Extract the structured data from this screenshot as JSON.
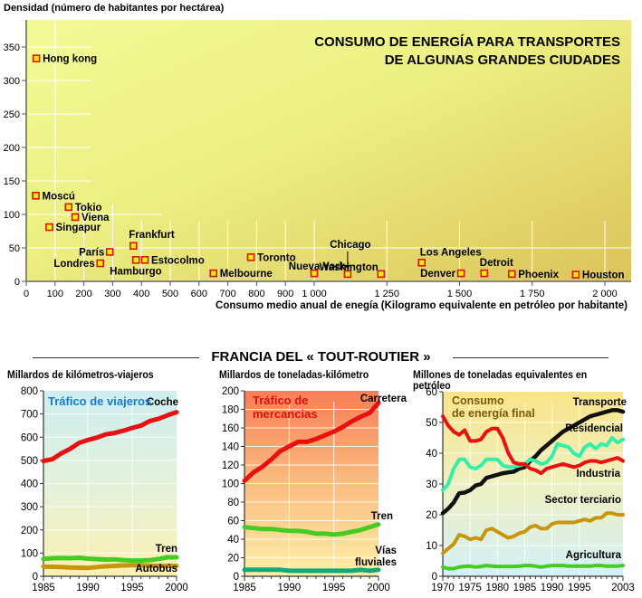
{
  "chart_data": [
    {
      "type": "scatter",
      "title": "CONSUMO DE ENERGÍA PARA TRANSPORTES DE ALGUNAS GRANDES CIUDADES",
      "title_lines": [
        "CONSUMO DE ENERGÍA PARA TRANSPORTES",
        "DE ALGUNAS GRANDES CIUDADES"
      ],
      "xlabel": "Consumo medio anual de enegía (Kilogramo equivalente en petróleo por habitante)",
      "ylabel": "Densidad (número de habitantes por hectárea)",
      "xlim": [
        0,
        2000
      ],
      "ylim": [
        0,
        380
      ],
      "x_scale_note": "piecewise: 0-1000 in steps of 100, 1000-2000 in steps of 250",
      "xticks": [
        {
          "value": 0,
          "label": "0"
        },
        {
          "value": 100,
          "label": "100"
        },
        {
          "value": 200,
          "label": "200"
        },
        {
          "value": 300,
          "label": "300"
        },
        {
          "value": 400,
          "label": "400"
        },
        {
          "value": 500,
          "label": "500"
        },
        {
          "value": 600,
          "label": "600"
        },
        {
          "value": 700,
          "label": "700"
        },
        {
          "value": 800,
          "label": "800"
        },
        {
          "value": 900,
          "label": "900"
        },
        {
          "value": 1000,
          "label": "1 000"
        },
        {
          "value": 1250,
          "label": "1 250"
        },
        {
          "value": 1500,
          "label": "1 500"
        },
        {
          "value": 1750,
          "label": "1 750"
        },
        {
          "value": 2000,
          "label": "2 000"
        }
      ],
      "yticks": [
        0,
        50,
        100,
        150,
        200,
        250,
        300,
        350
      ],
      "grid": true,
      "points": [
        {
          "city": "Hong kong",
          "x": 35,
          "y": 333,
          "label_pos": "right"
        },
        {
          "city": "Moscú",
          "x": 33,
          "y": 128,
          "label_pos": "right"
        },
        {
          "city": "Tokio",
          "x": 147,
          "y": 111,
          "label_pos": "right"
        },
        {
          "city": "Viena",
          "x": 170,
          "y": 96,
          "label_pos": "right"
        },
        {
          "city": "Singapur",
          "x": 80,
          "y": 81,
          "label_pos": "right"
        },
        {
          "city": "París",
          "x": 290,
          "y": 44,
          "label_pos": "left"
        },
        {
          "city": "Londres",
          "x": 257,
          "y": 27,
          "label_pos": "left"
        },
        {
          "city": "Frankfurt",
          "x": 372,
          "y": 53,
          "label_pos": "above"
        },
        {
          "city": "Hamburgo",
          "x": 381,
          "y": 32,
          "label_pos": "below-left"
        },
        {
          "city": "Estocolmo",
          "x": 412,
          "y": 32,
          "label_pos": "right"
        },
        {
          "city": "Melbourne",
          "x": 650,
          "y": 12,
          "label_pos": "right"
        },
        {
          "city": "Toronto",
          "x": 780,
          "y": 36,
          "label_pos": "right"
        },
        {
          "city": "Nueva York",
          "x": 1000,
          "y": 12,
          "label_pos": "above-left"
        },
        {
          "city": "Chicago",
          "x": 1115,
          "y": 11,
          "label_pos": "above-arrow"
        },
        {
          "city": "Washington",
          "x": 1230,
          "y": 11,
          "label_pos": "above-left"
        },
        {
          "city": "Los Angeles",
          "x": 1370,
          "y": 28,
          "label_pos": "above-right"
        },
        {
          "city": "Denver",
          "x": 1505,
          "y": 12,
          "label_pos": "left"
        },
        {
          "city": "Detroit",
          "x": 1585,
          "y": 12,
          "label_pos": "above-right"
        },
        {
          "city": "Phoenix",
          "x": 1680,
          "y": 11,
          "label_pos": "right"
        },
        {
          "city": "Houston",
          "x": 1900,
          "y": 10,
          "label_pos": "right"
        }
      ]
    },
    {
      "type": "line",
      "title": "Tráfico de viajeros",
      "ylabel": "Millardos de kilómetros-viajeros",
      "x": [
        1985,
        1986,
        1987,
        1988,
        1989,
        1990,
        1991,
        1992,
        1993,
        1994,
        1995,
        1996,
        1997,
        1998,
        1999,
        2000
      ],
      "xticks": [
        1985,
        1990,
        1995,
        2000
      ],
      "ylim": [
        0,
        800
      ],
      "yticks": [
        0,
        100,
        200,
        300,
        400,
        500,
        600,
        700,
        800
      ],
      "series": [
        {
          "name": "Coche",
          "color": "#e81010",
          "values": [
            497,
            505,
            530,
            550,
            575,
            588,
            598,
            612,
            618,
            628,
            640,
            650,
            670,
            680,
            695,
            708
          ]
        },
        {
          "name": "Tren",
          "color": "#44cc22",
          "values": [
            75,
            78,
            79,
            78,
            80,
            76,
            74,
            72,
            73,
            70,
            68,
            68,
            70,
            75,
            82,
            82
          ]
        },
        {
          "name": "Autobús",
          "color": "#c8960c",
          "values": [
            42,
            41,
            40,
            38,
            37,
            36,
            40,
            43,
            45,
            47,
            48,
            48,
            46,
            45,
            45,
            45
          ]
        }
      ]
    },
    {
      "type": "line",
      "title": "Tráfico de mercancias",
      "title_lines": [
        "Tráfico de",
        "mercancias"
      ],
      "ylabel": "Millardos de toneladas-kilómetro",
      "x": [
        1985,
        1986,
        1987,
        1988,
        1989,
        1990,
        1991,
        1992,
        1993,
        1994,
        1995,
        1996,
        1997,
        1998,
        1999,
        2000
      ],
      "xticks": [
        1985,
        1990,
        1995,
        2000
      ],
      "ylim": [
        0,
        200
      ],
      "yticks": [
        0,
        20,
        40,
        60,
        80,
        100,
        120,
        140,
        160,
        180,
        200
      ],
      "series": [
        {
          "name": "Carretera",
          "color": "#e81010",
          "values": [
            103,
            112,
            118,
            126,
            135,
            140,
            145,
            145,
            148,
            152,
            156,
            161,
            167,
            172,
            176,
            187
          ]
        },
        {
          "name": "Tren",
          "color": "#44cc22",
          "values": [
            53,
            52,
            51,
            51,
            50,
            49,
            49,
            48,
            46,
            46,
            45,
            46,
            48,
            50,
            53,
            56
          ]
        },
        {
          "name": "Vías fluviales",
          "label_lines": [
            "Vías",
            "fluviales"
          ],
          "color": "#11aa77",
          "values": [
            7,
            7,
            7,
            7,
            7,
            6,
            6,
            6,
            6,
            6,
            6,
            6,
            6,
            7,
            6,
            7
          ]
        }
      ]
    },
    {
      "type": "line",
      "title": "Consumo de energía final",
      "title_lines": [
        "Consumo",
        "de energía final"
      ],
      "ylabel": "Millones de toneladas equivalentes en petróleo",
      "x": [
        1970,
        1971,
        1972,
        1973,
        1974,
        1975,
        1976,
        1977,
        1978,
        1979,
        1980,
        1981,
        1982,
        1983,
        1984,
        1985,
        1986,
        1987,
        1988,
        1989,
        1990,
        1991,
        1992,
        1993,
        1994,
        1995,
        1996,
        1997,
        1998,
        1999,
        2000,
        2001,
        2002,
        2003
      ],
      "xticks": [
        1970,
        1975,
        1980,
        1985,
        1990,
        1995,
        2003
      ],
      "ylim": [
        0,
        60
      ],
      "yticks": [
        0,
        10,
        20,
        30,
        40,
        50,
        60
      ],
      "series": [
        {
          "name": "Transporte",
          "color": "#111111",
          "values": [
            20.5,
            22,
            24,
            27,
            27.2,
            28,
            29.5,
            30,
            32,
            32.5,
            33,
            33.5,
            33.8,
            34,
            35,
            35.5,
            37.5,
            39,
            41,
            42.5,
            44,
            45.5,
            47,
            48,
            49,
            50,
            51,
            52,
            52.5,
            53,
            53.5,
            54,
            54,
            53.5
          ]
        },
        {
          "name": "Residencial",
          "color": "#33eeaa",
          "values": [
            28,
            30,
            35,
            38,
            38,
            35.5,
            35,
            36,
            38,
            38,
            38,
            36,
            35.5,
            35.5,
            36,
            36.5,
            38,
            37.5,
            36.5,
            37,
            39,
            43,
            42.5,
            42,
            40,
            39,
            42,
            43,
            41.5,
            43,
            42.5,
            45,
            43.5,
            44.5
          ]
        },
        {
          "name": "Industria",
          "color": "#e81010",
          "values": [
            52,
            49,
            47,
            46,
            47.5,
            44,
            44,
            44.5,
            47,
            48,
            48,
            45,
            40,
            37,
            36.5,
            36.5,
            35,
            34.5,
            33.5,
            35,
            35.5,
            36,
            36.5,
            36,
            35.5,
            36,
            37,
            37.5,
            37.5,
            37,
            37.5,
            38,
            38.5,
            37.5
          ]
        },
        {
          "name": "Sector terciario",
          "color": "#c8960c",
          "values": [
            7.5,
            9,
            10.5,
            13.5,
            13,
            12,
            12.5,
            12,
            15,
            15.5,
            14.5,
            13.5,
            12.5,
            13,
            14,
            14.5,
            16,
            16.5,
            15.5,
            15.5,
            17,
            17.5,
            17.5,
            17.5,
            17.5,
            18,
            18.5,
            18,
            19,
            19,
            20.5,
            20.5,
            20,
            20
          ]
        },
        {
          "name": "Agricultura",
          "color": "#44cc22",
          "values": [
            3,
            2.5,
            2.5,
            3,
            3.2,
            3.3,
            3,
            3.2,
            3.5,
            3.3,
            3.2,
            3.2,
            3.2,
            3.2,
            3.3,
            3.5,
            3.5,
            3.3,
            3,
            3.3,
            3.5,
            3.5,
            3.5,
            3.3,
            3.3,
            3.3,
            3.3,
            3.3,
            3.5,
            3.5,
            3.3,
            3.3,
            3.3,
            3.5
          ]
        }
      ]
    }
  ],
  "section": {
    "title": "FRANCIA DEL « TOUT-ROUTIER »"
  },
  "colors": {
    "marker_border": "#dd1111",
    "marker_fill": "#ffee00",
    "viajeros_title": "#1a7ac8",
    "mercancias_title": "#d81010",
    "energia_title": "#7a5a10"
  }
}
